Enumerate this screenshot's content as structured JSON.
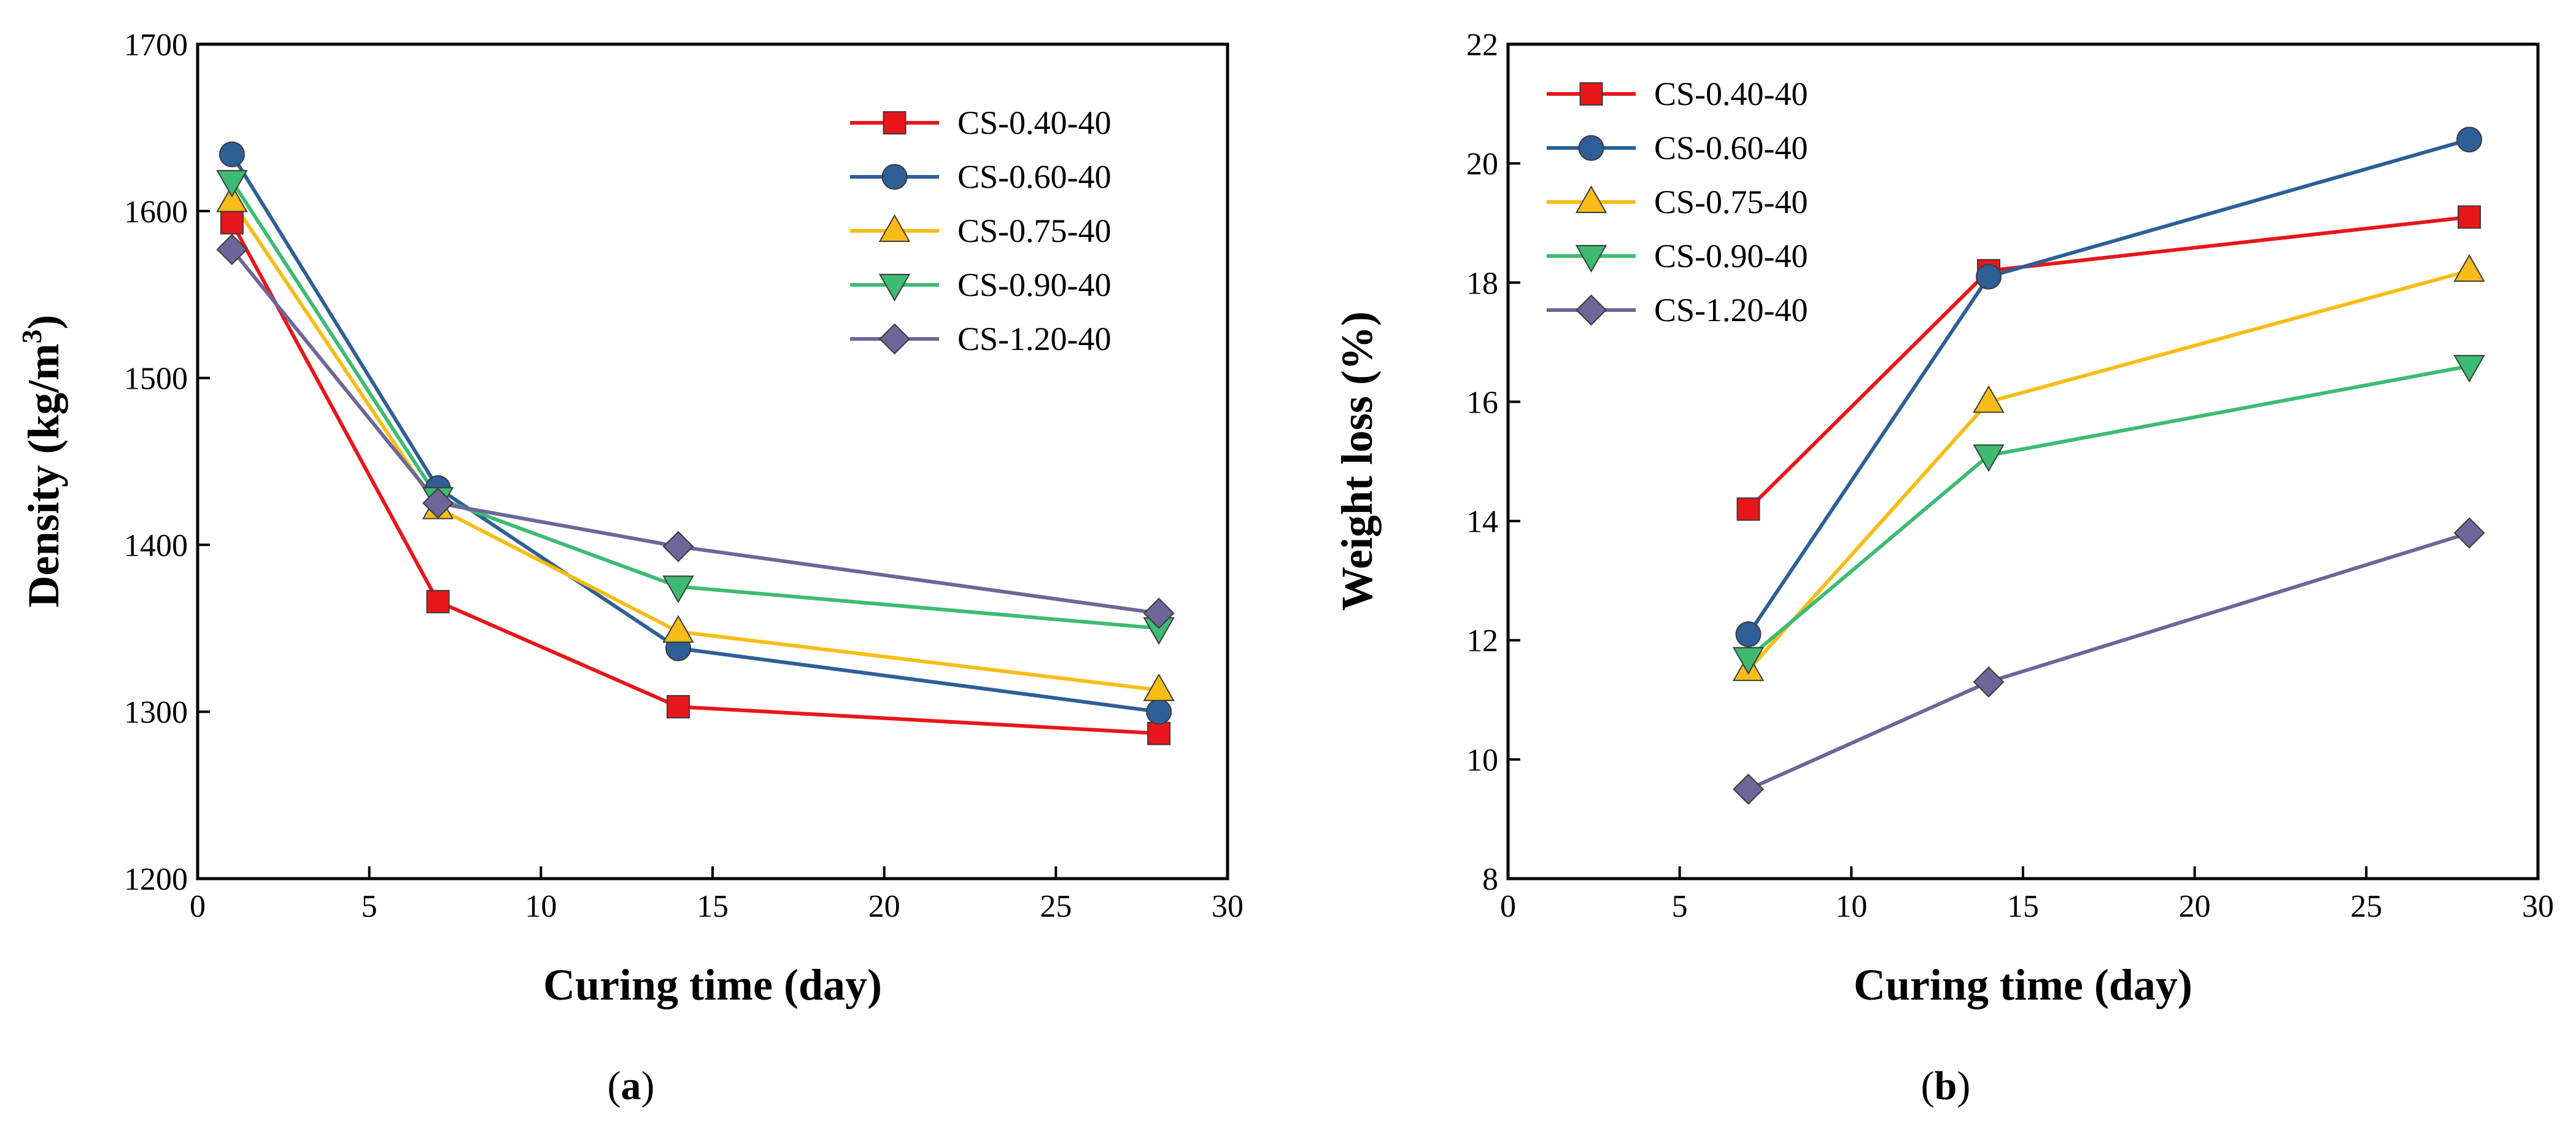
{
  "chart_data": [
    {
      "type": "line",
      "panel_label": "a",
      "title": "",
      "xlabel": "Curing time (day)",
      "ylabel_main": "Density (kg/m",
      "ylabel_sup": "3",
      "ylabel_end": ")",
      "xlim": [
        0,
        30
      ],
      "ylim": [
        1200,
        1700
      ],
      "xticks": [
        0,
        5,
        10,
        15,
        20,
        25,
        30
      ],
      "yticks": [
        1200,
        1300,
        1400,
        1500,
        1600,
        1700
      ],
      "grid": false,
      "legend_position": "top-right",
      "series": [
        {
          "name": "CS-0.40-40",
          "color": "#e8161b",
          "marker": "square",
          "x": [
            1,
            7,
            14,
            28
          ],
          "y": [
            1593,
            1366,
            1303,
            1287
          ]
        },
        {
          "name": "CS-0.60-40",
          "color": "#2e5f96",
          "marker": "circle",
          "x": [
            1,
            7,
            14,
            28
          ],
          "y": [
            1634,
            1434,
            1338,
            1300
          ]
        },
        {
          "name": "CS-0.75-40",
          "color": "#f7bd16",
          "marker": "triangle-up",
          "x": [
            1,
            7,
            14,
            28
          ],
          "y": [
            1606,
            1422,
            1348,
            1313
          ]
        },
        {
          "name": "CS-0.90-40",
          "color": "#3dbb72",
          "marker": "triangle-down",
          "x": [
            1,
            7,
            14,
            28
          ],
          "y": [
            1618,
            1428,
            1375,
            1350
          ]
        },
        {
          "name": "CS-1.20-40",
          "color": "#6e6598",
          "marker": "diamond",
          "x": [
            1,
            7,
            14,
            28
          ],
          "y": [
            1577,
            1425,
            1399,
            1359
          ]
        }
      ]
    },
    {
      "type": "line",
      "panel_label": "b",
      "title": "",
      "xlabel": "Curing time (day)",
      "ylabel": "Weight loss (%)",
      "xlim": [
        0,
        30
      ],
      "ylim": [
        8,
        22
      ],
      "xticks": [
        0,
        5,
        10,
        15,
        20,
        25,
        30
      ],
      "yticks": [
        8,
        10,
        12,
        14,
        16,
        18,
        20,
        22
      ],
      "grid": false,
      "legend_position": "top-left",
      "series": [
        {
          "name": "CS-0.40-40",
          "color": "#e8161b",
          "marker": "square",
          "x": [
            7,
            14,
            28
          ],
          "y": [
            14.2,
            18.2,
            19.1
          ]
        },
        {
          "name": "CS-0.60-40",
          "color": "#2e5f96",
          "marker": "circle",
          "x": [
            7,
            14,
            28
          ],
          "y": [
            12.1,
            18.1,
            20.4
          ]
        },
        {
          "name": "CS-0.75-40",
          "color": "#f7bd16",
          "marker": "triangle-up",
          "x": [
            7,
            14,
            28
          ],
          "y": [
            11.5,
            16.0,
            18.2
          ]
        },
        {
          "name": "CS-0.90-40",
          "color": "#3dbb72",
          "marker": "triangle-down",
          "x": [
            7,
            14,
            28
          ],
          "y": [
            11.7,
            15.1,
            16.6
          ]
        },
        {
          "name": "CS-1.20-40",
          "color": "#6e6598",
          "marker": "diamond",
          "x": [
            7,
            14,
            28
          ],
          "y": [
            9.5,
            11.3,
            13.8
          ]
        }
      ]
    }
  ]
}
